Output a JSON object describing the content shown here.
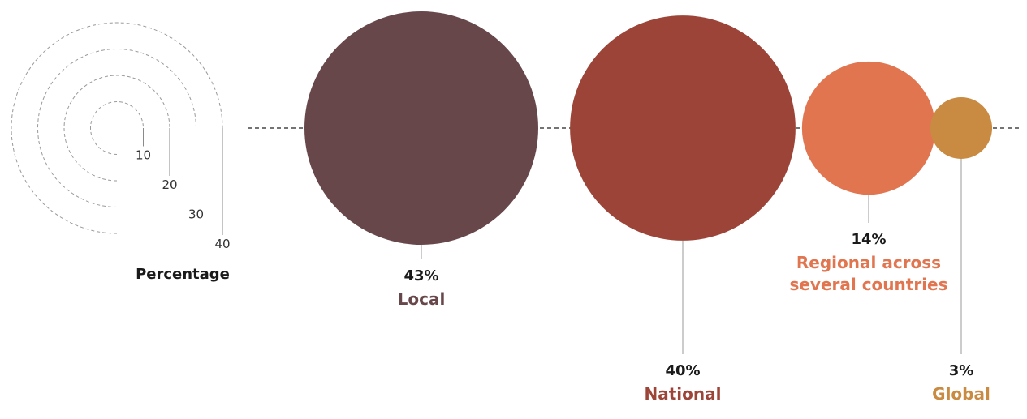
{
  "chart_data": {
    "type": "bubble",
    "unit": "%",
    "categories": [
      "Local",
      "National",
      "Regional across several countries",
      "Global"
    ],
    "values": [
      43,
      40,
      14,
      3
    ],
    "value_labels": [
      "43%",
      "40%",
      "14%",
      "3%"
    ],
    "category_label_lines": [
      [
        "Local"
      ],
      [
        "National"
      ],
      [
        "Regional across",
        "several countries"
      ],
      [
        "Global"
      ]
    ],
    "colors": [
      "#67474a",
      "#9c4438",
      "#e07550",
      "#c98a42"
    ],
    "size_legend": {
      "title": "Percentage",
      "values": [
        10,
        20,
        30,
        40
      ],
      "labels": [
        "10",
        "20",
        "30",
        "40"
      ]
    }
  }
}
